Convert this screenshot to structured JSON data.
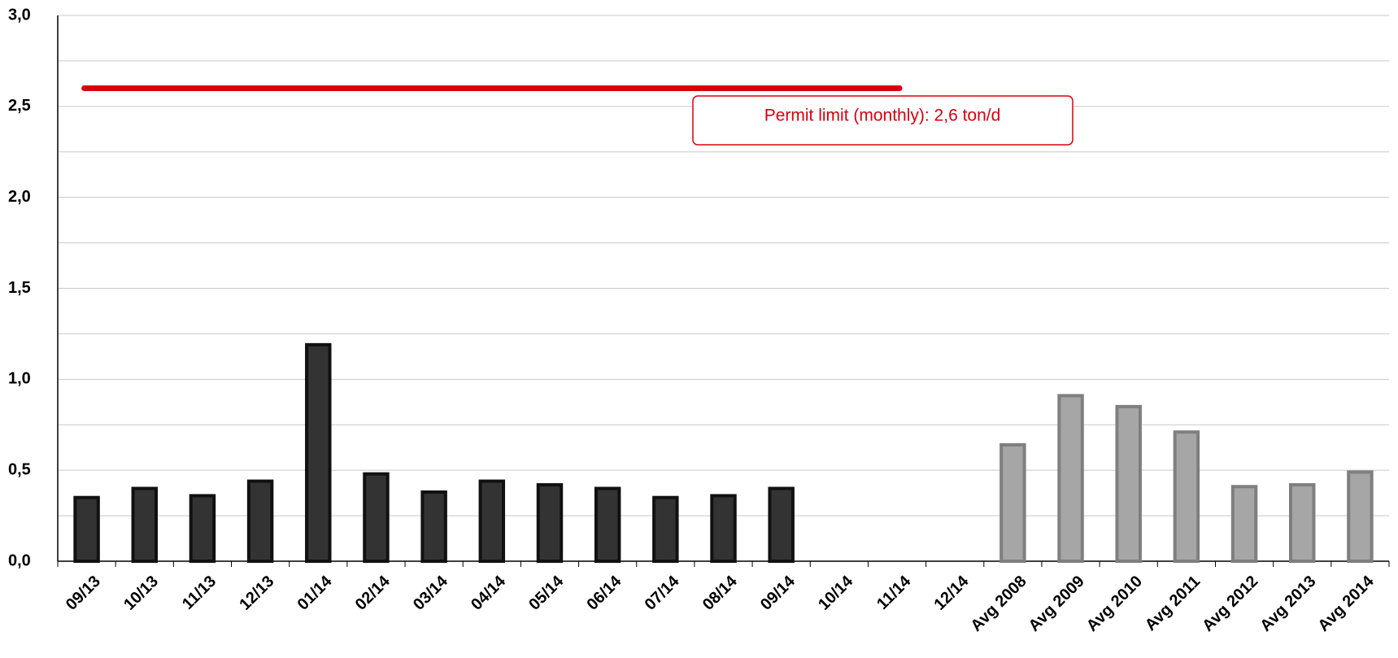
{
  "chart_data": {
    "type": "bar",
    "categories": [
      "09/13",
      "10/13",
      "11/13",
      "12/13",
      "01/14",
      "02/14",
      "03/14",
      "04/14",
      "05/14",
      "06/14",
      "07/14",
      "08/14",
      "09/14",
      "10/14",
      "11/14",
      "12/14",
      "Avg 2008",
      "Avg 2009",
      "Avg 2010",
      "Avg 2011",
      "Avg 2012",
      "Avg 2013",
      "Avg 2014"
    ],
    "series": [
      {
        "color": "#333333",
        "edge": "#111111",
        "values": [
          0.35,
          0.4,
          0.36,
          0.44,
          1.19,
          0.48,
          0.38,
          0.44,
          0.42,
          0.4,
          0.35,
          0.36,
          0.4,
          null,
          null,
          null,
          null,
          null,
          null,
          null,
          null,
          null,
          null
        ]
      },
      {
        "color": "#a6a6a6",
        "edge": "#7f7f7f",
        "values": [
          null,
          null,
          null,
          null,
          null,
          null,
          null,
          null,
          null,
          null,
          null,
          null,
          null,
          null,
          null,
          null,
          0.64,
          0.91,
          0.85,
          0.71,
          0.41,
          0.42,
          0.49
        ]
      }
    ],
    "ylim": [
      0,
      3
    ],
    "yticks": [
      {
        "value": 0,
        "label": "0,0"
      },
      {
        "value": 0.5,
        "label": "0,5"
      },
      {
        "value": 1,
        "label": "1,0"
      },
      {
        "value": 1.5,
        "label": "1,5"
      },
      {
        "value": 2,
        "label": "2,0"
      },
      {
        "value": 2.5,
        "label": "2,5"
      },
      {
        "value": 3,
        "label": "3,0"
      }
    ],
    "minor_yticks": [
      0.25,
      0.75,
      1.25,
      1.75,
      2.25,
      2.75
    ],
    "grid": true,
    "reference_line": {
      "value": 2.6,
      "label": "Permit limit (monthly): 2,6 ton/d",
      "color": "#d9000d",
      "start": "09/13",
      "end": "11/14"
    }
  }
}
